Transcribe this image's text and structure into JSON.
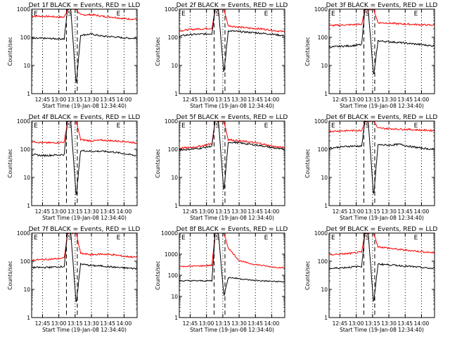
{
  "chart_data": [
    {
      "type": "line",
      "title": "Det 1f BLACK = Events, RED = LLD",
      "xlabel": "Start Time (19-Jan-08 12:34:40)",
      "ylabel": "Counts/sec",
      "yscale": "log",
      "ylim": [
        1,
        1000
      ],
      "yticks": [
        "1",
        "10",
        "100",
        "1000"
      ],
      "xticks": [
        "12:45",
        "13:00",
        "13:15",
        "13:30",
        "13:45",
        "14:00"
      ],
      "markers": [
        "E",
        "S",
        "E"
      ],
      "series": [
        {
          "color": "#ff0000",
          "role": "LLD",
          "x": [
            "12:35",
            "12:45",
            "12:55",
            "13:05",
            "13:08",
            "13:11",
            "13:16",
            "13:20",
            "13:30",
            "13:40",
            "13:50",
            "14:00",
            "14:10"
          ],
          "y": [
            560,
            560,
            540,
            520,
            1000,
            1000,
            1000,
            620,
            640,
            560,
            520,
            460,
            440
          ]
        },
        {
          "color": "#000000",
          "role": "Events",
          "x": [
            "12:35",
            "12:45",
            "12:55",
            "13:05",
            "13:08",
            "13:11",
            "13:16",
            "13:20",
            "13:30",
            "13:40",
            "13:50",
            "14:00",
            "14:10"
          ],
          "y": [
            90,
            92,
            90,
            88,
            1000,
            1000,
            2,
            120,
            130,
            110,
            105,
            95,
            92
          ]
        }
      ]
    },
    {
      "type": "line",
      "title": "Det 2f BLACK = Events, RED = LLD",
      "xlabel": "Start Time (19-Jan-08 12:34:40)",
      "ylabel": "Counts/sec",
      "yscale": "log",
      "ylim": [
        1,
        1000
      ],
      "yticks": [
        "1",
        "10",
        "100",
        "1000"
      ],
      "xticks": [
        "12:45",
        "13:00",
        "13:15",
        "13:30",
        "13:45",
        "14:00"
      ],
      "markers": [
        "E",
        "S",
        "E"
      ],
      "series": [
        {
          "color": "#ff0000",
          "role": "LLD",
          "x": [
            "12:35",
            "12:45",
            "12:55",
            "13:05",
            "13:08",
            "13:11",
            "13:16",
            "13:20",
            "13:30",
            "13:40",
            "13:50",
            "14:00",
            "14:10"
          ],
          "y": [
            170,
            190,
            200,
            210,
            1000,
            1000,
            1000,
            260,
            230,
            210,
            200,
            180,
            160
          ]
        },
        {
          "color": "#000000",
          "role": "Events",
          "x": [
            "12:35",
            "12:45",
            "12:55",
            "13:05",
            "13:08",
            "13:11",
            "13:16",
            "13:20",
            "13:30",
            "13:40",
            "13:50",
            "14:00",
            "14:10"
          ],
          "y": [
            110,
            125,
            130,
            135,
            1000,
            1000,
            5,
            170,
            160,
            150,
            140,
            130,
            115
          ]
        }
      ]
    },
    {
      "type": "line",
      "title": "Det 3f BLACK = Events, RED = LLD",
      "xlabel": "Start Time (19-Jan-08 12:34:40)",
      "ylabel": "Counts/sec",
      "yscale": "log",
      "ylim": [
        1,
        1000
      ],
      "yticks": [
        "1",
        "10",
        "100",
        "1000"
      ],
      "xticks": [
        "12:45",
        "13:00",
        "13:15",
        "13:30",
        "13:45",
        "14:00"
      ],
      "markers": [
        "E",
        "S",
        "E"
      ],
      "series": [
        {
          "color": "#ff0000",
          "role": "LLD",
          "x": [
            "12:35",
            "12:45",
            "12:55",
            "13:05",
            "13:08",
            "13:11",
            "13:16",
            "13:20",
            "13:30",
            "13:40",
            "13:50",
            "14:00",
            "14:10"
          ],
          "y": [
            260,
            270,
            280,
            290,
            1000,
            1000,
            1000,
            330,
            320,
            300,
            290,
            280,
            270
          ]
        },
        {
          "color": "#000000",
          "role": "Events",
          "x": [
            "12:35",
            "12:45",
            "12:55",
            "13:05",
            "13:08",
            "13:11",
            "13:16",
            "13:20",
            "13:30",
            "13:40",
            "13:50",
            "14:00",
            "14:10"
          ],
          "y": [
            45,
            48,
            50,
            55,
            1000,
            1000,
            4,
            75,
            70,
            65,
            60,
            55,
            50
          ]
        }
      ]
    },
    {
      "type": "line",
      "title": "Det 4f BLACK = Events, RED = LLD",
      "xlabel": "Start Time (19-Jan-08 12:34:40)",
      "ylabel": "Counts/sec",
      "yscale": "log",
      "ylim": [
        1,
        1000
      ],
      "yticks": [
        "1",
        "10",
        "100",
        "1000"
      ],
      "xticks": [
        "12:45",
        "13:00",
        "13:15",
        "13:30",
        "13:45",
        "14:00"
      ],
      "markers": [
        "E",
        "S",
        "E"
      ],
      "series": [
        {
          "color": "#ff0000",
          "role": "LLD",
          "x": [
            "12:35",
            "12:45",
            "12:55",
            "13:05",
            "13:08",
            "13:11",
            "13:16",
            "13:20",
            "13:30",
            "13:40",
            "13:50",
            "14:00",
            "14:10"
          ],
          "y": [
            190,
            170,
            170,
            180,
            1000,
            1000,
            1000,
            220,
            200,
            210,
            200,
            190,
            170
          ]
        },
        {
          "color": "#000000",
          "role": "Events",
          "x": [
            "12:35",
            "12:45",
            "12:55",
            "13:05",
            "13:08",
            "13:11",
            "13:16",
            "13:20",
            "13:30",
            "13:40",
            "13:50",
            "14:00",
            "14:10"
          ],
          "y": [
            65,
            60,
            62,
            65,
            1000,
            1000,
            2,
            90,
            85,
            85,
            80,
            70,
            60
          ]
        }
      ]
    },
    {
      "type": "line",
      "title": "Det 5f BLACK = Events, RED = LLD",
      "xlabel": "Start Time (19-Jan-08 12:34:40)",
      "ylabel": "Counts/sec",
      "yscale": "log",
      "ylim": [
        1,
        1000
      ],
      "yticks": [
        "1",
        "10",
        "100",
        "1000"
      ],
      "xticks": [
        "12:45",
        "13:00",
        "13:15",
        "13:30",
        "13:45",
        "14:00"
      ],
      "markers": [
        "E",
        "S",
        "E"
      ],
      "series": [
        {
          "color": "#ff0000",
          "role": "LLD",
          "x": [
            "12:35",
            "12:45",
            "12:55",
            "13:05",
            "13:08",
            "13:11",
            "13:16",
            "13:20",
            "13:30",
            "13:40",
            "13:50",
            "14:00",
            "14:10"
          ],
          "y": [
            110,
            115,
            130,
            160,
            1000,
            1000,
            1000,
            220,
            200,
            180,
            160,
            130,
            115
          ]
        },
        {
          "color": "#000000",
          "role": "Events",
          "x": [
            "12:35",
            "12:45",
            "12:55",
            "13:05",
            "13:08",
            "13:11",
            "13:16",
            "13:20",
            "13:30",
            "13:40",
            "13:50",
            "14:00",
            "14:10"
          ],
          "y": [
            95,
            100,
            110,
            130,
            1000,
            1000,
            3,
            180,
            170,
            150,
            135,
            115,
            100
          ]
        }
      ]
    },
    {
      "type": "line",
      "title": "Det 6f BLACK = Events, RED = LLD",
      "xlabel": "Start Time (19-Jan-08 12:34:40)",
      "ylabel": "Counts/sec",
      "yscale": "log",
      "ylim": [
        1,
        1000
      ],
      "yticks": [
        "1",
        "10",
        "100",
        "1000"
      ],
      "xticks": [
        "12:45",
        "13:00",
        "13:15",
        "13:30",
        "13:45",
        "14:00"
      ],
      "markers": [
        "E",
        "S",
        "E"
      ],
      "series": [
        {
          "color": "#ff0000",
          "role": "LLD",
          "x": [
            "12:35",
            "12:45",
            "12:55",
            "13:05",
            "13:08",
            "13:11",
            "13:16",
            "13:20",
            "13:30",
            "13:40",
            "13:50",
            "14:00",
            "14:10"
          ],
          "y": [
            430,
            450,
            460,
            470,
            1000,
            1000,
            1000,
            560,
            540,
            520,
            500,
            480,
            460
          ]
        },
        {
          "color": "#000000",
          "role": "Events",
          "x": [
            "12:35",
            "12:45",
            "12:55",
            "13:05",
            "13:08",
            "13:11",
            "13:16",
            "13:20",
            "13:30",
            "13:40",
            "13:50",
            "14:00",
            "14:10"
          ],
          "y": [
            110,
            120,
            130,
            130,
            1000,
            1000,
            2,
            145,
            140,
            150,
            125,
            110,
            100
          ]
        }
      ]
    },
    {
      "type": "line",
      "title": "Det 7f BLACK = Events, RED = LLD",
      "xlabel": "Start Time (19-Jan-08 12:34:40)",
      "ylabel": "Counts/sec",
      "yscale": "log",
      "ylim": [
        1,
        1000
      ],
      "yticks": [
        "1",
        "10",
        "100",
        "1000"
      ],
      "xticks": [
        "12:45",
        "13:00",
        "13:15",
        "13:30",
        "13:45",
        "14:00"
      ],
      "markers": [
        "E",
        "S",
        "E"
      ],
      "series": [
        {
          "color": "#ff0000",
          "role": "LLD",
          "x": [
            "12:35",
            "12:45",
            "12:55",
            "13:05",
            "13:08",
            "13:11",
            "13:16",
            "13:20",
            "13:30",
            "13:40",
            "13:50",
            "14:00",
            "14:10"
          ],
          "y": [
            110,
            115,
            120,
            130,
            1000,
            1000,
            1000,
            190,
            170,
            180,
            170,
            150,
            140
          ]
        },
        {
          "color": "#000000",
          "role": "Events",
          "x": [
            "12:35",
            "12:45",
            "12:55",
            "13:05",
            "13:08",
            "13:11",
            "13:16",
            "13:20",
            "13:30",
            "13:40",
            "13:50",
            "14:00",
            "14:10"
          ],
          "y": [
            60,
            60,
            62,
            65,
            1000,
            1000,
            3,
            80,
            70,
            68,
            62,
            58,
            55
          ]
        }
      ]
    },
    {
      "type": "line",
      "title": "Det 8f BLACK = Events, RED = LLD",
      "xlabel": "Start Time (19-Jan-08 12:34:40)",
      "ylabel": "Counts/sec",
      "yscale": "log",
      "ylim": [
        1,
        10000
      ],
      "yticks": [
        "1",
        "10",
        "100",
        "1000",
        "10000"
      ],
      "xticks": [
        "12:45",
        "13:00",
        "13:15",
        "13:30",
        "13:45",
        "14:00"
      ],
      "markers": [
        "E",
        "S",
        "E"
      ],
      "series": [
        {
          "color": "#ff0000",
          "role": "LLD",
          "x": [
            "12:35",
            "12:45",
            "12:55",
            "13:05",
            "13:08",
            "13:11",
            "13:16",
            "13:20",
            "13:30",
            "13:40",
            "13:50",
            "14:00",
            "14:10"
          ],
          "y": [
            260,
            270,
            280,
            300,
            10000,
            10000,
            10000,
            2000,
            500,
            360,
            300,
            250,
            230
          ]
        },
        {
          "color": "#000000",
          "role": "Events",
          "x": [
            "12:35",
            "12:45",
            "12:55",
            "13:05",
            "13:08",
            "13:11",
            "13:16",
            "13:20",
            "13:30",
            "13:40",
            "13:50",
            "14:00",
            "14:10"
          ],
          "y": [
            55,
            55,
            55,
            55,
            10000,
            10000,
            10,
            80,
            70,
            60,
            55,
            52,
            50
          ]
        }
      ]
    },
    {
      "type": "line",
      "title": "Det 9f BLACK = Events, RED = LLD",
      "xlabel": "Start Time (19-Jan-08 12:34:40)",
      "ylabel": "Counts/sec",
      "yscale": "log",
      "ylim": [
        1,
        1000
      ],
      "yticks": [
        "1",
        "10",
        "100",
        "1000"
      ],
      "xticks": [
        "12:45",
        "13:00",
        "13:15",
        "13:30",
        "13:45",
        "14:00"
      ],
      "markers": [
        "E",
        "S",
        "E"
      ],
      "series": [
        {
          "color": "#ff0000",
          "role": "LLD",
          "x": [
            "12:35",
            "12:45",
            "12:55",
            "13:05",
            "13:08",
            "13:11",
            "13:16",
            "13:20",
            "13:30",
            "13:40",
            "13:50",
            "14:00",
            "14:10"
          ],
          "y": [
            170,
            180,
            190,
            210,
            1000,
            1000,
            1000,
            330,
            290,
            260,
            240,
            220,
            200
          ]
        },
        {
          "color": "#000000",
          "role": "Events",
          "x": [
            "12:35",
            "12:45",
            "12:55",
            "13:05",
            "13:08",
            "13:11",
            "13:16",
            "13:20",
            "13:30",
            "13:40",
            "13:50",
            "14:00",
            "14:10"
          ],
          "y": [
            55,
            58,
            62,
            66,
            1000,
            1000,
            3,
            80,
            75,
            70,
            65,
            60,
            55
          ]
        }
      ]
    }
  ]
}
